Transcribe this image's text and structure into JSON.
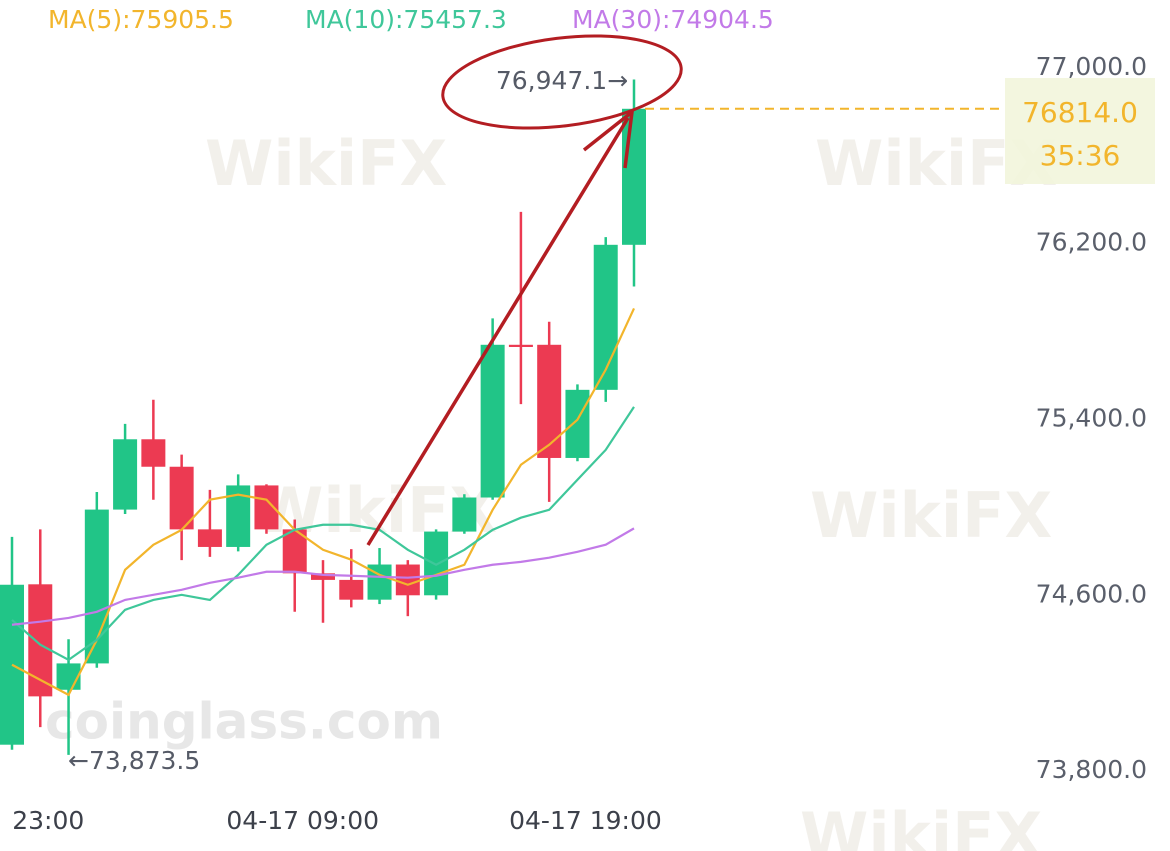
{
  "chart_data": {
    "type": "candlestick",
    "categories": [
      null,
      "23:00",
      null,
      null,
      null,
      null,
      null,
      null,
      null,
      null,
      "04-17 09:00",
      null,
      null,
      null,
      null,
      null,
      null,
      null,
      null,
      null,
      "04-17 19:00",
      null,
      null
    ],
    "open": [
      73920,
      74650,
      74170,
      74290,
      74990,
      75310,
      75185,
      74900,
      74820,
      75100,
      74900,
      74700,
      74670,
      74580,
      74740,
      74600,
      74890,
      75045,
      75740,
      75740,
      75225,
      75535,
      76195
    ],
    "high": [
      74866,
      74900,
      74400,
      75070,
      75380,
      75490,
      75240,
      75080,
      75150,
      75105,
      74945,
      74760,
      74810,
      74815,
      74760,
      74900,
      75060,
      75860,
      76345,
      75845,
      75560,
      76230,
      76947.1
    ],
    "low": [
      73897,
      74000,
      73873.5,
      74270,
      74970,
      75035,
      74760,
      74775,
      74800,
      74880,
      74525,
      74475,
      74545,
      74560,
      74505,
      74580,
      74880,
      75035,
      75470,
      75025,
      75210,
      75480,
      76005
    ],
    "close": [
      74648,
      74140,
      74290,
      74990,
      75310,
      75185,
      74900,
      74820,
      75100,
      74900,
      74700,
      74670,
      74580,
      74740,
      74600,
      74890,
      75045,
      75740,
      75730,
      75225,
      75535,
      76195,
      76814.0
    ],
    "up_color": "#21c587",
    "down_color": "#ec3a52",
    "series": [
      {
        "name": "MA(5):75905.5",
        "color": "#f2b52c",
        "values": [
          74284,
          74215,
          74147,
          74397,
          74716,
          74830,
          74898,
          75035,
          75058,
          75035,
          74898,
          74807,
          74762,
          74693,
          74648,
          74693,
          74739,
          74989,
          75194,
          75285,
          75399,
          75627,
          75905.5
        ]
      },
      {
        "name": "MA(10):75457.3",
        "color": "#3fc79a",
        "values": [
          74488,
          74375,
          74306,
          74397,
          74534,
          74579,
          74602,
          74579,
          74693,
          74830,
          74898,
          74921,
          74921,
          74898,
          74807,
          74739,
          74807,
          74898,
          74953,
          74989,
          75126,
          75262,
          75457.3
        ]
      },
      {
        "name": "MA(30):74904.5",
        "color": "#c27ae8",
        "values": [
          74466,
          74480,
          74497,
          74525,
          74579,
          74602,
          74625,
          74657,
          74680,
          74707,
          74707,
          74693,
          74689,
          74684,
          74680,
          74689,
          74716,
          74739,
          74752,
          74771,
          74798,
          74830,
          74904.5
        ]
      }
    ],
    "ylim": [
      73500,
      77300
    ],
    "yticks": [
      {
        "value": 77000,
        "label": "77,000.0"
      },
      {
        "value": 76200,
        "label": "76,200.0"
      },
      {
        "value": 75400,
        "label": "75,400.0"
      },
      {
        "value": 74600,
        "label": "74,600.0"
      },
      {
        "value": 73800,
        "label": "73,800.0"
      }
    ],
    "high_label": "76,947.1→",
    "low_label": "←73,873.5",
    "last_price": {
      "value": 76814.0,
      "label": "76814.0"
    },
    "countdown": "35:36",
    "watermarks": [
      "WikiFX",
      "coinglass.com"
    ]
  }
}
